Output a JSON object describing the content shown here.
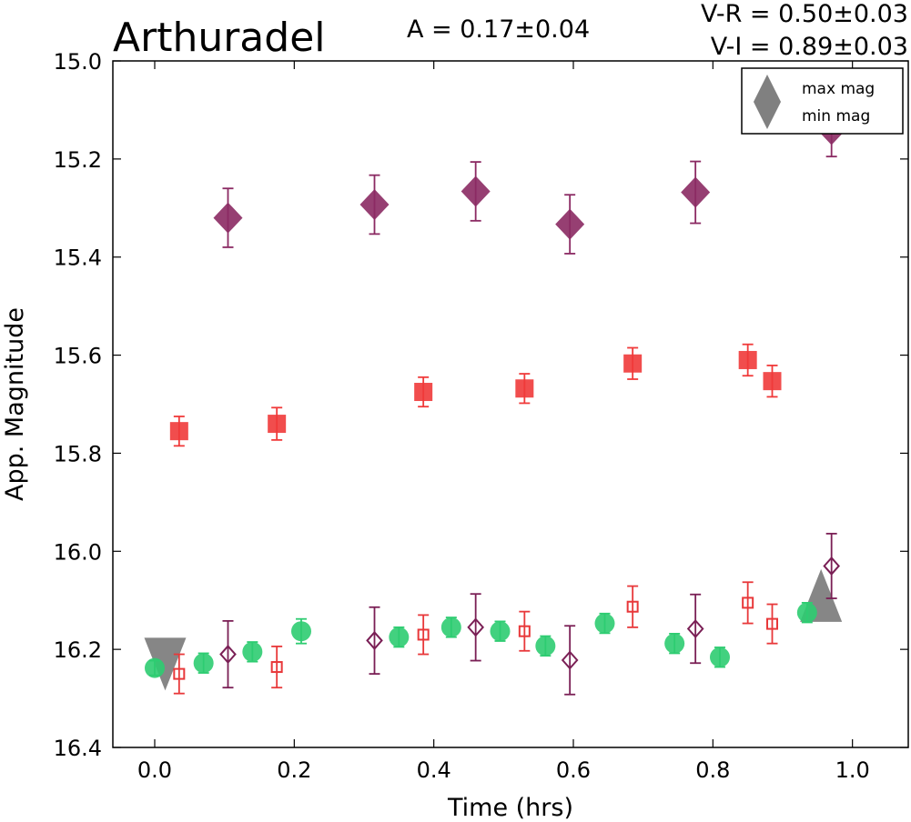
{
  "chart_data": {
    "type": "scatter",
    "title": "Arthuradel",
    "annotations": {
      "amplitude": "A  = 0.17±0.04",
      "v_r": "V-R = 0.50±0.03",
      "v_i": "V-I  = 0.89±0.03"
    },
    "xlabel": "Time (hrs)",
    "ylabel": "App. Magnitude",
    "xlim": [
      -0.06,
      1.08
    ],
    "ylim": [
      16.4,
      15.0
    ],
    "y_inverted": true,
    "xticks": [
      "0.0",
      "0.2",
      "0.4",
      "0.6",
      "0.8",
      "1.0"
    ],
    "yticks": [
      "15.0",
      "15.2",
      "15.4",
      "15.6",
      "15.8",
      "16.0",
      "16.2",
      "16.4"
    ],
    "grid": false,
    "legend": {
      "placement": "top-right",
      "entries": [
        {
          "label": "max mag",
          "marker": "triangle-up",
          "color": "#808080"
        },
        {
          "label": "min mag",
          "marker": "triangle-down",
          "color": "#808080"
        }
      ]
    },
    "extrema_markers": [
      {
        "kind": "min mag",
        "x": 0.015,
        "y": 16.23
      },
      {
        "kind": "max mag",
        "x": 0.955,
        "y": 16.09
      }
    ],
    "series": [
      {
        "marker": "diamond",
        "filled": true,
        "color": "#8b2a63",
        "points": [
          {
            "x": 0.105,
            "y": 15.32,
            "err": 0.06
          },
          {
            "x": 0.315,
            "y": 15.293,
            "err": 0.06
          },
          {
            "x": 0.46,
            "y": 15.266,
            "err": 0.06
          },
          {
            "x": 0.595,
            "y": 15.333,
            "err": 0.06
          },
          {
            "x": 0.775,
            "y": 15.268,
            "err": 0.063
          },
          {
            "x": 0.97,
            "y": 15.14,
            "err": 0.055
          }
        ]
      },
      {
        "marker": "square",
        "filled": true,
        "color": "#f03a3a",
        "points": [
          {
            "x": 0.035,
            "y": 15.755,
            "err": 0.03
          },
          {
            "x": 0.175,
            "y": 15.74,
            "err": 0.033
          },
          {
            "x": 0.385,
            "y": 15.675,
            "err": 0.03
          },
          {
            "x": 0.53,
            "y": 15.668,
            "err": 0.03
          },
          {
            "x": 0.685,
            "y": 15.617,
            "err": 0.032
          },
          {
            "x": 0.85,
            "y": 15.61,
            "err": 0.032
          },
          {
            "x": 0.885,
            "y": 15.653,
            "err": 0.032
          }
        ]
      },
      {
        "marker": "circle",
        "filled": true,
        "color": "#2ecc71",
        "points": [
          {
            "x": 0.0,
            "y": 16.238,
            "err": 0.015
          },
          {
            "x": 0.07,
            "y": 16.228,
            "err": 0.02
          },
          {
            "x": 0.14,
            "y": 16.205,
            "err": 0.02
          },
          {
            "x": 0.21,
            "y": 16.163,
            "err": 0.025
          },
          {
            "x": 0.35,
            "y": 16.175,
            "err": 0.02
          },
          {
            "x": 0.425,
            "y": 16.155,
            "err": 0.02
          },
          {
            "x": 0.495,
            "y": 16.163,
            "err": 0.02
          },
          {
            "x": 0.56,
            "y": 16.193,
            "err": 0.02
          },
          {
            "x": 0.645,
            "y": 16.147,
            "err": 0.02
          },
          {
            "x": 0.745,
            "y": 16.188,
            "err": 0.02
          },
          {
            "x": 0.81,
            "y": 16.216,
            "err": 0.02
          },
          {
            "x": 0.935,
            "y": 16.125,
            "err": 0.02
          }
        ]
      },
      {
        "marker": "square",
        "filled": false,
        "color": "#e8383a",
        "points": [
          {
            "x": 0.035,
            "y": 16.25,
            "err": 0.04
          },
          {
            "x": 0.175,
            "y": 16.236,
            "err": 0.042
          },
          {
            "x": 0.385,
            "y": 16.17,
            "err": 0.04
          },
          {
            "x": 0.53,
            "y": 16.163,
            "err": 0.04
          },
          {
            "x": 0.685,
            "y": 16.113,
            "err": 0.042
          },
          {
            "x": 0.85,
            "y": 16.105,
            "err": 0.042
          },
          {
            "x": 0.885,
            "y": 16.148,
            "err": 0.04
          }
        ]
      },
      {
        "marker": "diamond",
        "filled": false,
        "color": "#7a1f55",
        "points": [
          {
            "x": 0.105,
            "y": 16.21,
            "err": 0.068
          },
          {
            "x": 0.315,
            "y": 16.182,
            "err": 0.068
          },
          {
            "x": 0.46,
            "y": 16.155,
            "err": 0.068
          },
          {
            "x": 0.595,
            "y": 16.222,
            "err": 0.07
          },
          {
            "x": 0.775,
            "y": 16.158,
            "err": 0.07
          },
          {
            "x": 0.97,
            "y": 16.03,
            "err": 0.066
          }
        ]
      }
    ]
  }
}
